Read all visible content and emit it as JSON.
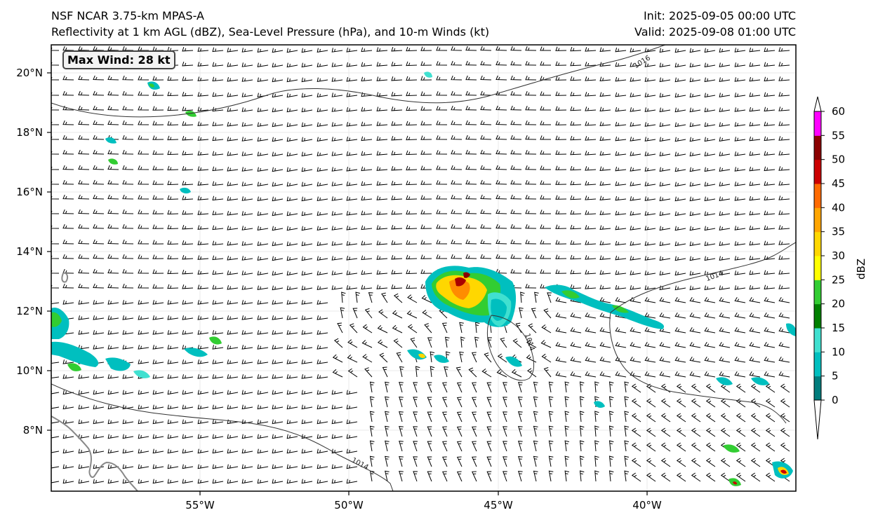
{
  "header": {
    "model": "NSF NCAR 3.75-km MPAS-A",
    "fields": "Reflectivity at 1 km AGL (dBZ), Sea-Level Pressure (hPa), and 10-m Winds (kt)",
    "init": "Init: 2025-09-05 00:00 UTC",
    "valid": "Valid: 2025-09-08 01:00 UTC"
  },
  "annotation": {
    "max_wind": "Max Wind: 28 kt"
  },
  "map": {
    "lon_ticks": [
      "55°W",
      "50°W",
      "45°W",
      "40°W"
    ],
    "lat_ticks": [
      "20°N",
      "18°N",
      "16°N",
      "14°N",
      "12°N",
      "10°N",
      "8°N"
    ],
    "isobar_labels": [
      "1016",
      "1014",
      "1014",
      "1014"
    ],
    "coastline_color": "#888888",
    "isobar_color": "#333333"
  },
  "colorbar": {
    "label": "dBZ",
    "ticks": [
      "60",
      "55",
      "50",
      "45",
      "40",
      "35",
      "30",
      "25",
      "20",
      "15",
      "10",
      "5",
      "0"
    ],
    "colors": [
      "#007d7d",
      "#00bfbf",
      "#40e0d0",
      "#008000",
      "#32cd32",
      "#ffff00",
      "#ffd700",
      "#ffa500",
      "#ff6a00",
      "#cc0000",
      "#8b0000",
      "#ff00ff",
      "#ffe4e1"
    ]
  }
}
